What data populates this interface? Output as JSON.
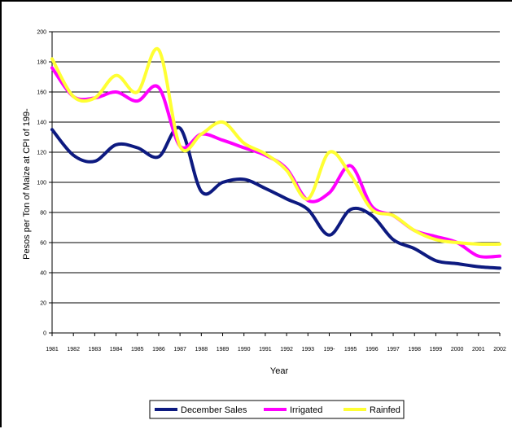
{
  "chart_data": {
    "type": "line",
    "title": "",
    "xlabel": "Year",
    "ylabel": "Pesos per Ton of Maize at CPI of 199-",
    "categories": [
      "1981",
      "1982",
      "1983",
      "1984",
      "1985",
      "1986",
      "1987",
      "1988",
      "1989",
      "1990",
      "1991",
      "1992",
      "1993",
      "199-",
      "1995",
      "1996",
      "1997",
      "1998",
      "1999",
      "2000",
      "2001",
      "2002"
    ],
    "y_ticks": [
      "0",
      "20",
      "40",
      "60",
      "80",
      "100",
      "120",
      "140",
      "160",
      "180",
      "200"
    ],
    "ylim": [
      0,
      200
    ],
    "grid": true,
    "legend_position": "bottom",
    "series": [
      {
        "name": "December Sales",
        "color": "#0d1a80",
        "values": [
          135,
          118,
          114,
          125,
          123,
          117,
          136,
          94,
          100,
          102,
          96,
          89,
          82,
          65,
          82,
          78,
          62,
          56,
          48,
          46,
          44,
          43
        ]
      },
      {
        "name": "Irrigated",
        "color": "#ff00ff",
        "values": [
          176,
          157,
          156,
          160,
          154,
          163,
          124,
          132,
          128,
          123,
          118,
          109,
          88,
          93,
          111,
          84,
          78,
          68,
          64,
          60,
          51,
          51
        ]
      },
      {
        "name": "Rainfed",
        "color": "#ffff33",
        "values": [
          182,
          157,
          156,
          171,
          160,
          188,
          124,
          132,
          140,
          126,
          119,
          108,
          89,
          120,
          105,
          82,
          78,
          68,
          62,
          60,
          59,
          59
        ]
      }
    ]
  }
}
